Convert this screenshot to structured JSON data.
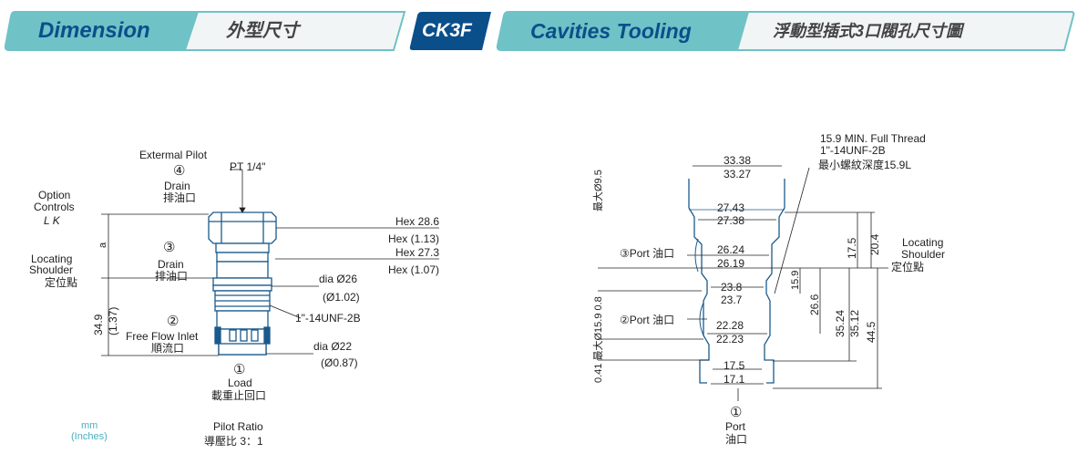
{
  "header": {
    "dimension_label": "Dimension",
    "dimension_cn": "外型尺寸",
    "model": "CK3F",
    "cavities_label": "Cavities Tooling",
    "cavities_cn": "浮動型插式3口閥孔尺寸圖",
    "colors": {
      "teal": "#6fc2c6",
      "navy": "#0a4f8a",
      "panel": "#f2f5f5"
    }
  },
  "left": {
    "external_pilot": "Extermal Pilot",
    "pt": "PT 1/4\"",
    "port4_num": "④",
    "port4_en": "Drain",
    "port4_cn": "排油口",
    "option_controls_1": "Option",
    "option_controls_2": "Controls",
    "option_lk": "L   K",
    "locating_1": "Locating",
    "locating_2": "Shoulder",
    "locating_cn": "定位點",
    "port3_num": "③",
    "port3_en": "Drain",
    "port3_cn": "排油口",
    "a_label": "a",
    "dim_349": "34.9",
    "dim_137": "(1.37)",
    "port2_num": "②",
    "port2_en": "Free Flow Inlet",
    "port2_cn": "順流口",
    "port1_num": "①",
    "port1_en": "Load",
    "port1_cn": "載重止回口",
    "hex286": "Hex 28.6",
    "hex113": "Hex (1.13)",
    "hex273": "Hex 27.3",
    "hex107": "Hex (1.07)",
    "dia26": "dia  Ø26",
    "dia102": "(Ø1.02)",
    "thread": "1\"-14UNF-2B",
    "dia22": "dia  Ø22",
    "dia087": "(Ø0.87)",
    "units_mm": "mm",
    "units_in": "(Inches)",
    "pilot_ratio": "Pilot Ratio",
    "pilot_ratio_cn": "導壓比 3：1"
  },
  "right": {
    "thread_1": "15.9 MIN. Full Thread",
    "thread_2": "1\"-14UNF-2B",
    "thread_3": "最小螺紋深度15.9L",
    "d3338": "33.38",
    "d3327": "33.27",
    "d2743": "27.43",
    "d2738": "27.38",
    "d2624": "26.24",
    "d2619": "26.19",
    "d238": "23.8",
    "d237": "23.7",
    "d2228": "22.28",
    "d2223": "22.23",
    "d175": "17.5",
    "d171": "17.1",
    "port3": "③Port 油口",
    "port2": "②Port 油口",
    "port1_num": "①",
    "port1_en": "Port",
    "port1_cn": "油口",
    "left_vertical_top": "最大Ø9.5",
    "left_vertical_bottom": "0.41 最大Ø15.9 0.8",
    "v175": "17.5",
    "v204": "20.4",
    "v159": "15.9",
    "v266": "26.6",
    "v3524": "35.24",
    "v3512": "35.12",
    "v445": "44.5",
    "locating_1": "Locating",
    "locating_2": "Shoulder",
    "locating_cn": "定位點"
  }
}
